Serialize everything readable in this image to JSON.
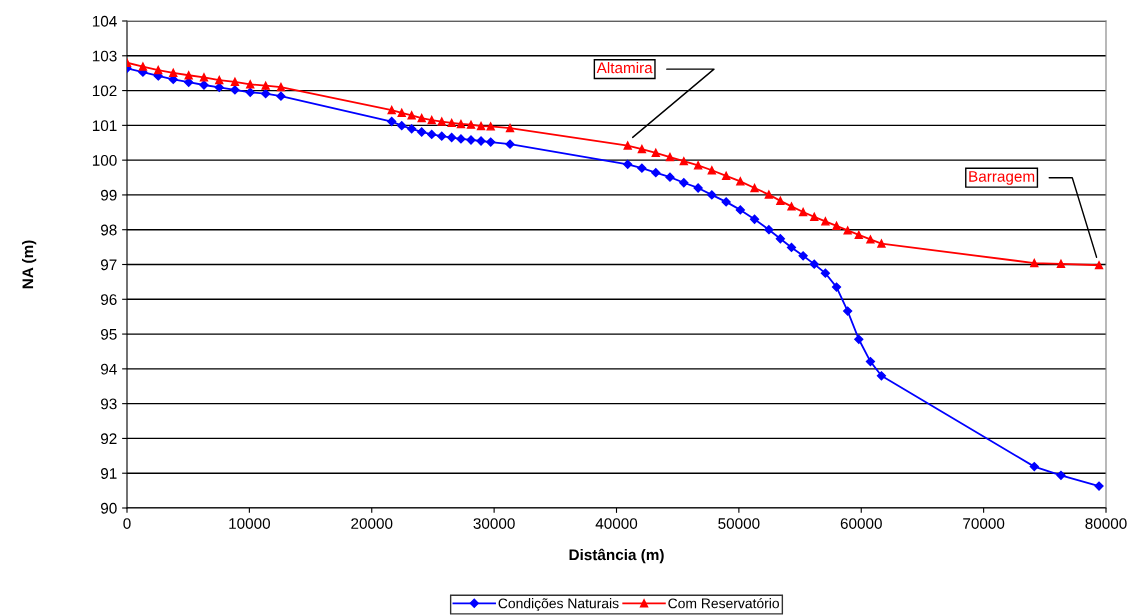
{
  "chart_data": {
    "type": "line",
    "xlabel": "Distância (m)",
    "ylabel": "NA (m)",
    "xlim": [
      0,
      80000
    ],
    "xticks": [
      0,
      10000,
      20000,
      30000,
      40000,
      50000,
      60000,
      70000,
      80000
    ],
    "ylim": [
      90,
      104
    ],
    "yticks": [
      90,
      91,
      92,
      93,
      94,
      95,
      96,
      97,
      98,
      99,
      100,
      101,
      102,
      103,
      104
    ],
    "grid": "y",
    "legend": "bottom",
    "series": [
      {
        "name": "Condições Naturais",
        "color": "#0000ff",
        "marker": "diamond",
        "x": [
          0,
          1300,
          2550,
          3780,
          5040,
          6290,
          7540,
          8820,
          10070,
          11330,
          12580,
          21630,
          22450,
          23260,
          24080,
          24900,
          25720,
          26530,
          27290,
          28110,
          28930,
          29720,
          31300,
          40915,
          42075,
          43210,
          44370,
          45500,
          46670,
          47790,
          48960,
          50120,
          51280,
          52450,
          53390,
          54300,
          55250,
          56160,
          57070,
          57980,
          58890,
          59800,
          60750,
          61650,
          74140,
          76320,
          79430
        ],
        "values": [
          102.64,
          102.53,
          102.42,
          102.32,
          102.24,
          102.16,
          102.09,
          102.02,
          101.95,
          101.91,
          101.84,
          101.11,
          100.99,
          100.9,
          100.81,
          100.74,
          100.69,
          100.65,
          100.61,
          100.58,
          100.55,
          100.52,
          100.46,
          99.88,
          99.77,
          99.64,
          99.51,
          99.35,
          99.2,
          99.0,
          98.8,
          98.57,
          98.3,
          98.0,
          97.74,
          97.49,
          97.25,
          97.01,
          96.75,
          96.35,
          95.66,
          94.85,
          94.21,
          93.8,
          91.19,
          90.94,
          90.63
        ]
      },
      {
        "name": "Com Reservatório",
        "color": "#ff0000",
        "marker": "triangle",
        "x": [
          0,
          1300,
          2550,
          3780,
          5040,
          6290,
          7540,
          8820,
          10070,
          11330,
          12580,
          21630,
          22450,
          23260,
          24080,
          24900,
          25720,
          26530,
          27290,
          28110,
          28930,
          29720,
          31300,
          40915,
          42075,
          43210,
          44370,
          45500,
          46670,
          47790,
          48960,
          50120,
          51280,
          52450,
          53390,
          54300,
          55250,
          56160,
          57070,
          57980,
          58890,
          59800,
          60750,
          61650,
          74140,
          76320,
          79430
        ],
        "values": [
          102.8,
          102.69,
          102.59,
          102.51,
          102.44,
          102.38,
          102.3,
          102.25,
          102.18,
          102.14,
          102.1,
          101.44,
          101.36,
          101.29,
          101.21,
          101.15,
          101.11,
          101.07,
          101.04,
          101.02,
          100.98,
          100.97,
          100.92,
          100.42,
          100.32,
          100.21,
          100.09,
          99.97,
          99.85,
          99.71,
          99.55,
          99.39,
          99.2,
          99.01,
          98.83,
          98.67,
          98.51,
          98.37,
          98.24,
          98.11,
          97.98,
          97.85,
          97.72,
          97.6,
          97.04,
          97.02,
          96.98
        ]
      }
    ],
    "annotations": [
      {
        "text": "Altamira",
        "x": 40800,
        "y": 100.5
      },
      {
        "text": "Barragem",
        "x": 79430,
        "y": 96.98
      }
    ]
  }
}
